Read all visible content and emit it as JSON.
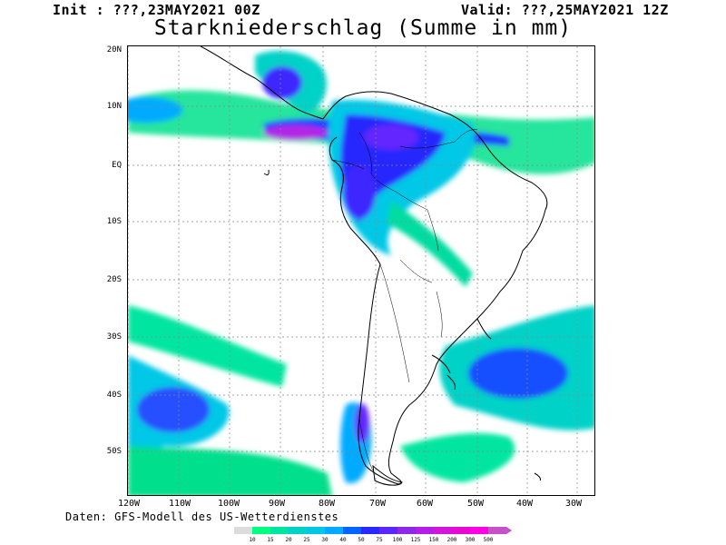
{
  "header": {
    "init": "Init : ???,23MAY2021 00Z",
    "valid": "Valid: ???,25MAY2021 12Z",
    "title": "Starkniederschlag (Summe in mm)"
  },
  "source": "Daten: GFS-Modell des US-Wetterdienstes",
  "axes": {
    "lat_labels": [
      "20N",
      "10N",
      "EQ",
      "10S",
      "20S",
      "30S",
      "40S",
      "50S"
    ],
    "lon_labels": [
      "120W",
      "110W",
      "100W",
      "90W",
      "80W",
      "70W",
      "60W",
      "50W",
      "40W",
      "30W"
    ]
  },
  "colorbar": {
    "labels": [
      "10",
      "15",
      "20",
      "25",
      "30",
      "40",
      "50",
      "75",
      "100",
      "125",
      "150",
      "200",
      "300",
      "500"
    ],
    "colors": [
      "#dcdcdc",
      "#00ff80",
      "#00e6a0",
      "#00d2c8",
      "#00c8e6",
      "#00aaff",
      "#0064ff",
      "#2828ff",
      "#5a28ff",
      "#8c28e6",
      "#b41ee6",
      "#d214dc",
      "#e60ad2",
      "#ff00e6",
      "#c850c8"
    ]
  }
}
